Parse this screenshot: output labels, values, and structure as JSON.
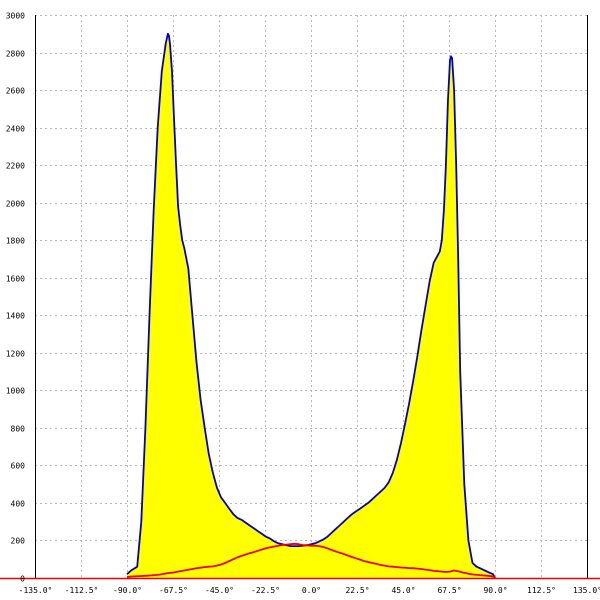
{
  "chart_data": {
    "type": "area",
    "title": "",
    "xlabel": "",
    "ylabel": "",
    "xlim": [
      -135,
      135
    ],
    "ylim": [
      0,
      3000
    ],
    "grid": true,
    "legend": "none",
    "x_ticks": [
      {
        "value": -135.0,
        "label": "-135.0°"
      },
      {
        "value": -112.5,
        "label": "-112.5°"
      },
      {
        "value": -90.0,
        "label": "-90.0°"
      },
      {
        "value": -67.5,
        "label": "-67.5°"
      },
      {
        "value": -45.0,
        "label": "-45.0°"
      },
      {
        "value": -22.5,
        "label": "-22.5°"
      },
      {
        "value": 0.0,
        "label": "0.0°"
      },
      {
        "value": 22.5,
        "label": "22.5°"
      },
      {
        "value": 45.0,
        "label": "45.0°"
      },
      {
        "value": 67.5,
        "label": "67.5°"
      },
      {
        "value": 90.0,
        "label": "90.0°"
      },
      {
        "value": 112.5,
        "label": "112.5°"
      },
      {
        "value": 135.0,
        "label": "135.0°"
      }
    ],
    "y_ticks": [
      {
        "value": 0,
        "label": "0"
      },
      {
        "value": 200,
        "label": "200"
      },
      {
        "value": 400,
        "label": "400"
      },
      {
        "value": 600,
        "label": "600"
      },
      {
        "value": 800,
        "label": "800"
      },
      {
        "value": 1000,
        "label": "1000"
      },
      {
        "value": 1200,
        "label": "1200"
      },
      {
        "value": 1400,
        "label": "1400"
      },
      {
        "value": 1600,
        "label": "1600"
      },
      {
        "value": 1800,
        "label": "1800"
      },
      {
        "value": 2000,
        "label": "2000"
      },
      {
        "value": 2200,
        "label": "2200"
      },
      {
        "value": 2400,
        "label": "2400"
      },
      {
        "value": 2600,
        "label": "2600"
      },
      {
        "value": 2800,
        "label": "2800"
      },
      {
        "value": 3000,
        "label": "3000"
      }
    ],
    "series": [
      {
        "line_color": "#0000cc",
        "fill_color": "#ffff00",
        "filled": true,
        "x": [
          -90,
          -88,
          -85,
          -83,
          -81,
          -79,
          -77,
          -75,
          -73,
          -71,
          -70,
          -69.5,
          -69,
          -68,
          -67,
          -66,
          -65,
          -64,
          -63,
          -62,
          -60,
          -58,
          -56,
          -54,
          -52,
          -50,
          -48,
          -46,
          -44,
          -42,
          -40,
          -38,
          -36,
          -34,
          -32,
          -30,
          -28,
          -26,
          -24,
          -22,
          -20,
          -18,
          -16,
          -14,
          -12,
          -10,
          -8,
          -6,
          -4,
          -2,
          0,
          2,
          4,
          6,
          8,
          10,
          12,
          14,
          16,
          18,
          20,
          22,
          24,
          26,
          28,
          30,
          32,
          34,
          36,
          38,
          40,
          42,
          44,
          46,
          48,
          50,
          52,
          54,
          56,
          58,
          60,
          62,
          63,
          64,
          65,
          66,
          67,
          68,
          68.5,
          69,
          70,
          71,
          72,
          73,
          75,
          77,
          79,
          81,
          83,
          85,
          87,
          89,
          90
        ],
        "y": [
          20,
          40,
          60,
          300,
          800,
          1400,
          1950,
          2400,
          2700,
          2850,
          2900,
          2890,
          2850,
          2700,
          2450,
          2200,
          1980,
          1880,
          1800,
          1760,
          1650,
          1400,
          1150,
          950,
          800,
          660,
          560,
          480,
          430,
          400,
          370,
          340,
          320,
          310,
          295,
          280,
          265,
          250,
          235,
          220,
          210,
          195,
          185,
          180,
          175,
          170,
          170,
          170,
          172,
          175,
          180,
          185,
          195,
          205,
          220,
          240,
          260,
          280,
          300,
          320,
          340,
          355,
          370,
          385,
          400,
          420,
          440,
          460,
          480,
          510,
          560,
          630,
          720,
          820,
          930,
          1050,
          1180,
          1320,
          1450,
          1580,
          1680,
          1720,
          1740,
          1800,
          1960,
          2200,
          2550,
          2760,
          2780,
          2770,
          2600,
          2200,
          1700,
          1100,
          500,
          200,
          80,
          60,
          50,
          40,
          30,
          20,
          0
        ]
      },
      {
        "line_color": "#ee0000",
        "filled": false,
        "x": [
          -90,
          -88,
          -84,
          -80,
          -78,
          -76,
          -74,
          -72,
          -70,
          -68,
          -66,
          -64,
          -62,
          -60,
          -58,
          -56,
          -54,
          -52,
          -50,
          -48,
          -46,
          -44,
          -42,
          -40,
          -38,
          -36,
          -34,
          -32,
          -30,
          -28,
          -26,
          -24,
          -22,
          -20,
          -18,
          -16,
          -14,
          -12,
          -10,
          -8,
          -6,
          -4,
          -2,
          0,
          2,
          4,
          6,
          8,
          10,
          12,
          14,
          16,
          18,
          20,
          22,
          24,
          26,
          28,
          30,
          32,
          34,
          36,
          38,
          40,
          42,
          44,
          46,
          48,
          50,
          52,
          54,
          56,
          58,
          60,
          62,
          64,
          66,
          68,
          70,
          72,
          74,
          76,
          78,
          80,
          82,
          84,
          86,
          88,
          90
        ],
        "y": [
          5,
          8,
          10,
          12,
          14,
          16,
          18,
          22,
          26,
          28,
          32,
          36,
          40,
          44,
          48,
          52,
          55,
          58,
          60,
          62,
          66,
          72,
          80,
          90,
          100,
          110,
          118,
          125,
          132,
          138,
          145,
          152,
          158,
          163,
          168,
          172,
          176,
          178,
          180,
          182,
          180,
          176,
          174,
          172,
          172,
          170,
          165,
          158,
          150,
          142,
          135,
          128,
          120,
          112,
          105,
          98,
          90,
          85,
          80,
          75,
          70,
          66,
          62,
          60,
          58,
          56,
          55,
          53,
          52,
          50,
          48,
          45,
          42,
          38,
          36,
          34,
          32,
          34,
          40,
          36,
          30,
          25,
          20,
          18,
          16,
          14,
          12,
          10,
          5
        ]
      }
    ]
  }
}
